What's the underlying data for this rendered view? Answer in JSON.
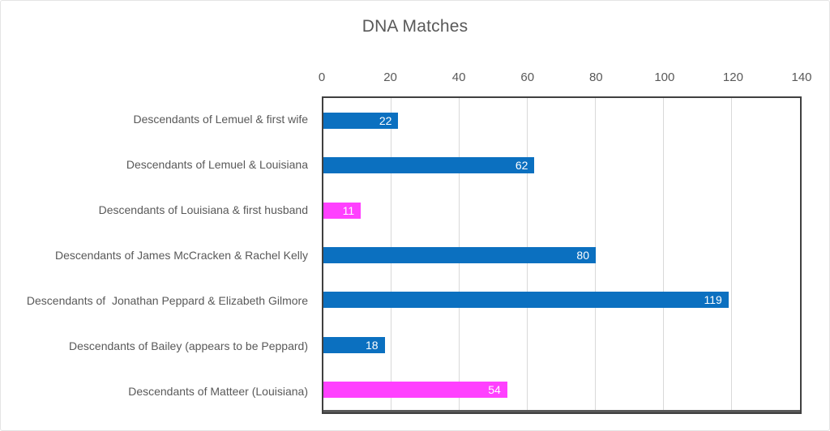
{
  "chart_data": {
    "type": "bar",
    "orientation": "horizontal",
    "title": "DNA Matches",
    "categories": [
      "Descendants of Lemuel & first wife",
      "Descendants of Lemuel & Louisiana",
      "Descendants of Louisiana & first husband",
      "Descendants of James McCracken & Rachel Kelly",
      "Descendants of  Jonathan Peppard & Elizabeth Gilmore",
      "Descendants of Bailey (appears to be Peppard)",
      "Descendants of Matteer (Louisiana)"
    ],
    "values": [
      22,
      62,
      11,
      80,
      119,
      18,
      54
    ],
    "bar_colors": [
      "#0b70c0",
      "#0b70c0",
      "#ff40ff",
      "#0b70c0",
      "#0b70c0",
      "#0b70c0",
      "#ff40ff"
    ],
    "data_labels": [
      "22",
      "62",
      "11",
      "80",
      "119",
      "18",
      "54"
    ],
    "data_label_position": "inside-end",
    "data_label_color": "#ffffff",
    "xlim": [
      0,
      140
    ],
    "x_ticks": [
      0,
      20,
      40,
      60,
      80,
      100,
      120,
      140
    ],
    "axis_position": "top",
    "grid": true,
    "gridline_color": "#d9d9d9",
    "text_color": "#595959",
    "legend_position": "none"
  }
}
